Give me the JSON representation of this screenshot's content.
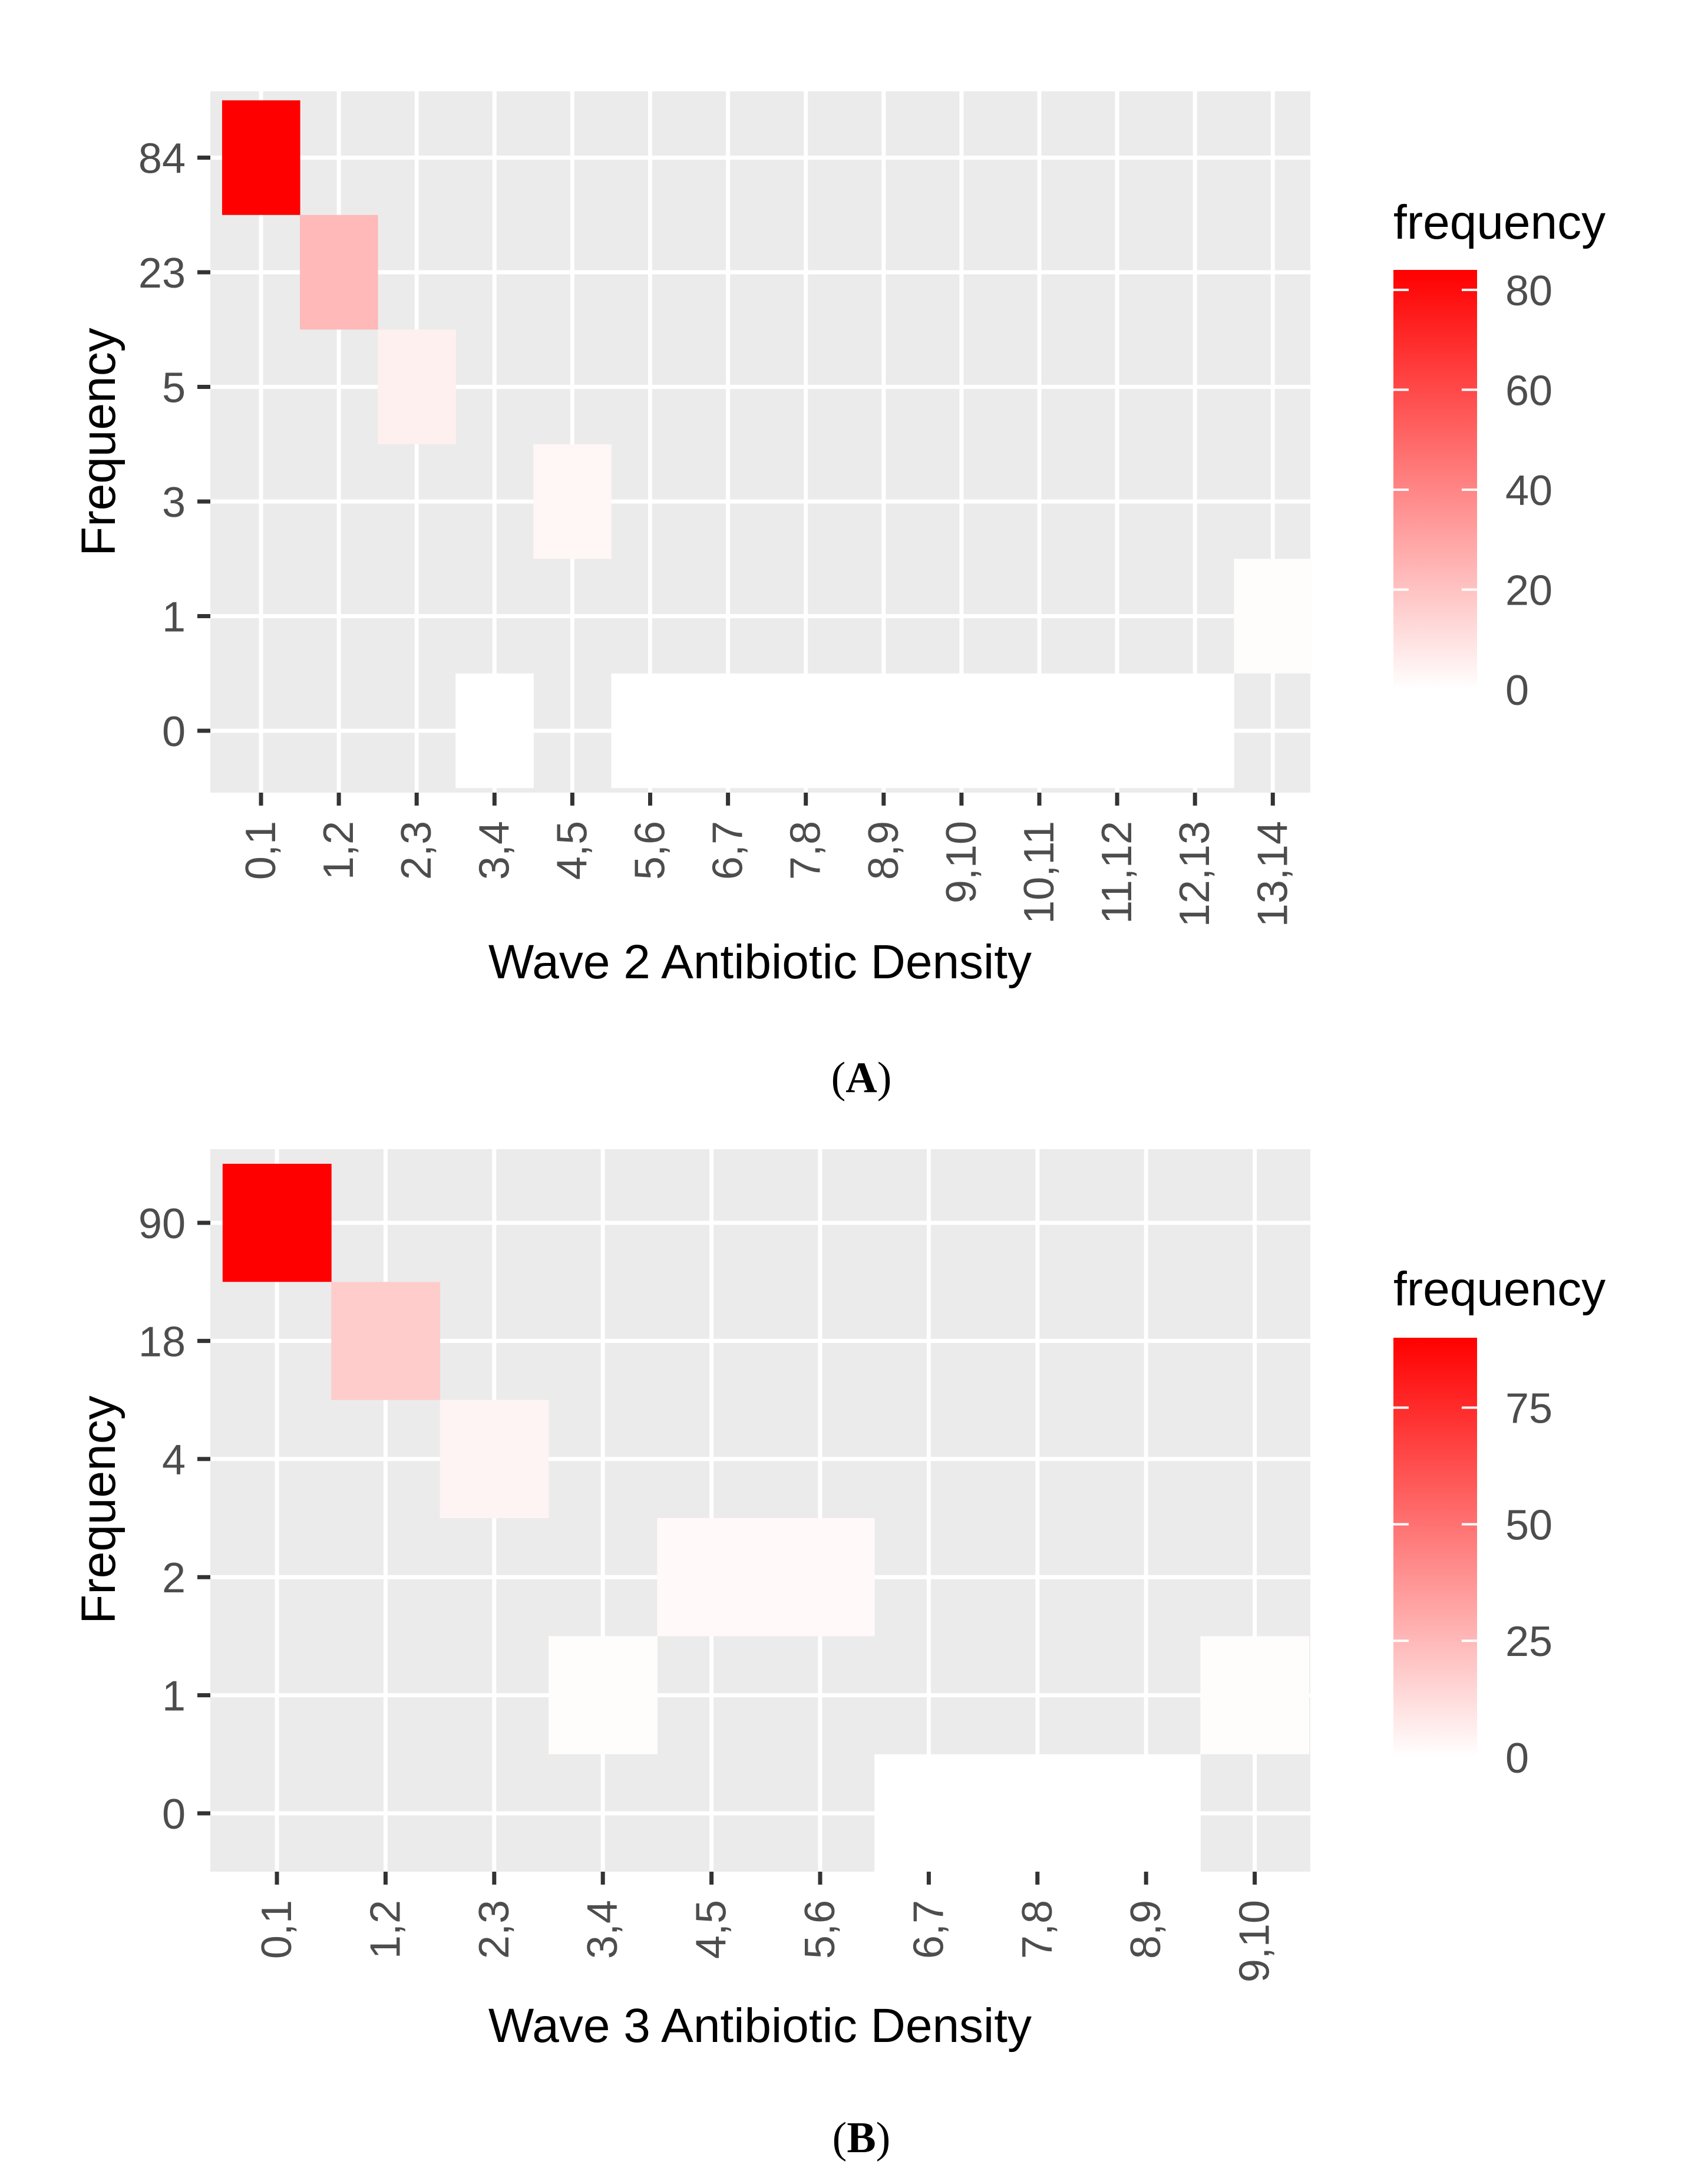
{
  "chart_data": [
    {
      "type": "heatmap",
      "panel_label": "A",
      "xlabel": "Wave 2 Antibiotic Density",
      "ylabel": "Frequency",
      "categories": [
        "0,1",
        "1,2",
        "2,3",
        "3,4",
        "4,5",
        "5,6",
        "6,7",
        "7,8",
        "8,9",
        "9,10",
        "10,11",
        "11,12",
        "12,13",
        "13,14"
      ],
      "y_ticks": [
        "0",
        "1",
        "3",
        "5",
        "23",
        "84"
      ],
      "values": [
        84,
        23,
        5,
        0,
        3,
        0,
        0,
        0,
        0,
        0,
        0,
        0,
        0,
        1
      ],
      "legend": {
        "title": "frequency",
        "ticks": [
          0,
          20,
          40,
          60,
          80
        ],
        "min": 0,
        "max": 84,
        "low_color": "#ffffff",
        "high_color": "#ff0000"
      },
      "grid": true
    },
    {
      "type": "heatmap",
      "panel_label": "B",
      "xlabel": "Wave 3 Antibiotic Density",
      "ylabel": "Frequency",
      "categories": [
        "0,1",
        "1,2",
        "2,3",
        "3,4",
        "4,5",
        "5,6",
        "6,7",
        "7,8",
        "8,9",
        "9,10"
      ],
      "y_ticks": [
        "0",
        "1",
        "2",
        "4",
        "18",
        "90"
      ],
      "values": [
        90,
        18,
        4,
        1,
        2,
        2,
        0,
        0,
        0,
        1
      ],
      "legend": {
        "title": "frequency",
        "ticks": [
          0,
          25,
          50,
          75
        ],
        "min": 0,
        "max": 90,
        "low_color": "#ffffff",
        "high_color": "#ff0000"
      },
      "grid": true
    }
  ],
  "colors": {
    "panel_bg": "#ebebeb",
    "grid": "#ffffff",
    "tick_text": "#4d4d4d",
    "tick_mark": "#333333"
  }
}
